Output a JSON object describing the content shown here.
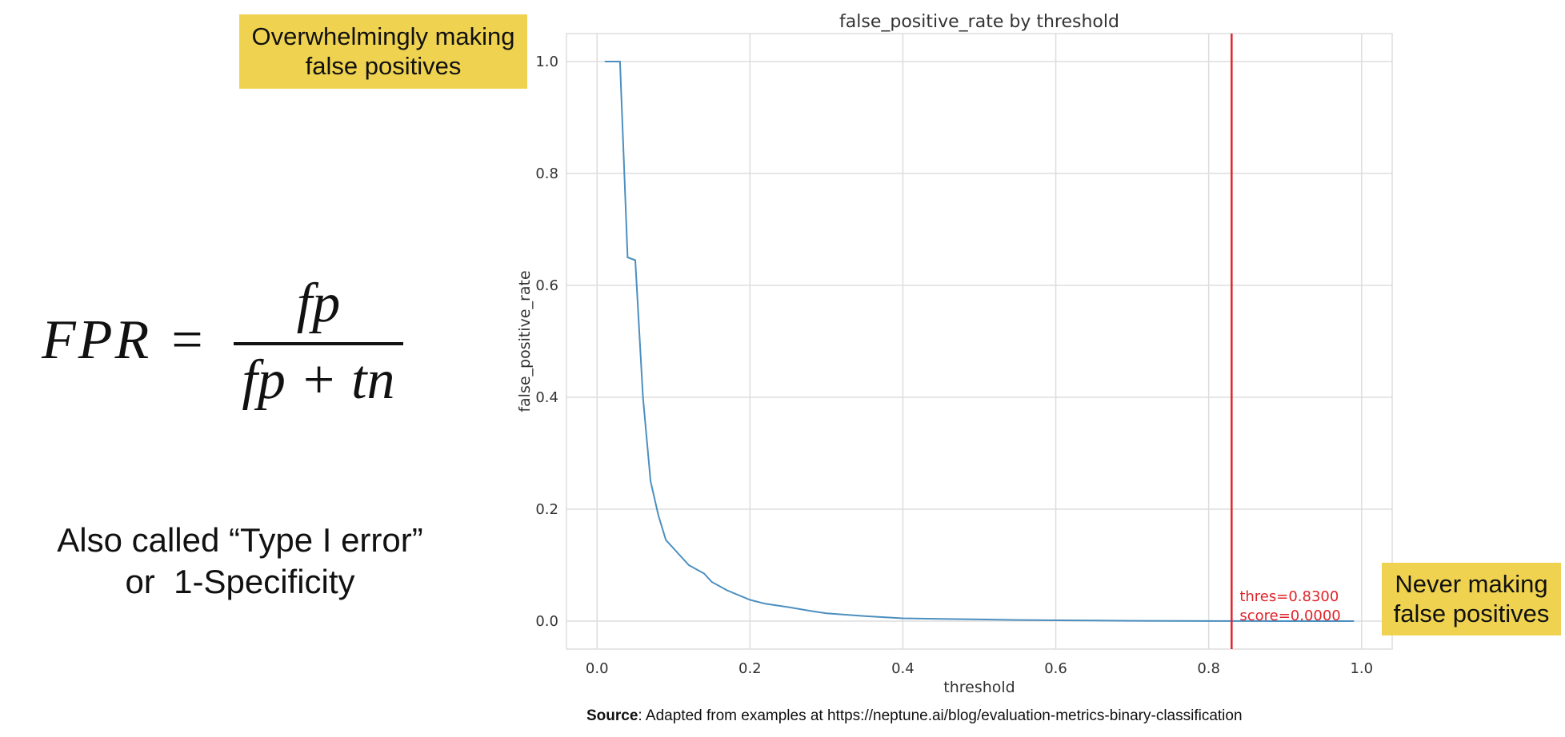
{
  "callout_top": {
    "line1": "Overwhelmingly making",
    "line2": "false positives"
  },
  "callout_bottom": {
    "line1": "Never making",
    "line2": "false positives"
  },
  "formula": {
    "lhs": "FPR =",
    "numerator": "fp",
    "denominator": "fp + tn"
  },
  "alias": {
    "line1": "Also called “Type I error”",
    "line2": "or  1-Specificity"
  },
  "source": {
    "label": "Source",
    "text": ": Adapted from examples at https://neptune.ai/blog/evaluation-metrics-binary-classification"
  },
  "colors": {
    "callout": "#efd350",
    "series": "#4c8fbf",
    "threshold_line": "#e0242a",
    "annotation": "#e0242a",
    "grid": "#dddddd"
  },
  "chart_data": {
    "type": "line",
    "title": "false_positive_rate by threshold",
    "xlabel": "threshold",
    "ylabel": "false_positive_rate",
    "xlim": [
      -0.04,
      1.04
    ],
    "ylim": [
      -0.05,
      1.05
    ],
    "xticks": [
      0.0,
      0.2,
      0.4,
      0.6,
      0.8,
      1.0
    ],
    "xtick_labels": [
      "0.0",
      "0.2",
      "0.4",
      "0.6",
      "0.8",
      "1.0"
    ],
    "yticks": [
      0.0,
      0.2,
      0.4,
      0.6,
      0.8,
      1.0
    ],
    "ytick_labels": [
      "0.0",
      "0.2",
      "0.4",
      "0.6",
      "0.8",
      "1.0"
    ],
    "grid": true,
    "series": [
      {
        "x": [
          0.01,
          0.03,
          0.04,
          0.05,
          0.06,
          0.07,
          0.08,
          0.09,
          0.1,
          0.12,
          0.14,
          0.15,
          0.17,
          0.2,
          0.22,
          0.25,
          0.28,
          0.3,
          0.35,
          0.4,
          0.45,
          0.5,
          0.55,
          0.6,
          0.65,
          0.7,
          0.75,
          0.8,
          0.85,
          0.9,
          0.95,
          0.99
        ],
        "y": [
          1.0,
          1.0,
          0.65,
          0.645,
          0.4,
          0.25,
          0.19,
          0.145,
          0.13,
          0.1,
          0.085,
          0.07,
          0.055,
          0.038,
          0.031,
          0.025,
          0.018,
          0.014,
          0.009,
          0.005,
          0.004,
          0.003,
          0.002,
          0.0015,
          0.001,
          0.0005,
          0.0003,
          0.0002,
          0.0001,
          0.0,
          0.0,
          0.0
        ]
      }
    ],
    "threshold_line": {
      "x": 0.83
    },
    "annotations": [
      "thres=0.8300",
      "score=0.0000"
    ]
  }
}
